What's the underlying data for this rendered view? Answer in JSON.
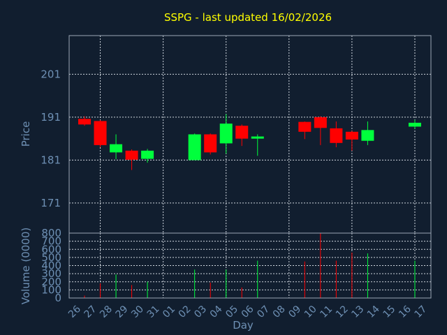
{
  "chart_data": {
    "type": "candlestick",
    "title": "SSPG - last updated 16/02/2026",
    "xlabel": "Day",
    "colors": {
      "up": "#00ff3c",
      "down": "#ff0000",
      "title": "#ffff00",
      "axis_text": "#6e90b4",
      "background": "#111e2f"
    },
    "x": [
      "26",
      "27",
      "28",
      "29",
      "30",
      "31",
      "01",
      "02",
      "03",
      "04",
      "05",
      "06",
      "07",
      "08",
      "09",
      "10",
      "11",
      "12",
      "13",
      "14",
      "15",
      "16",
      "17"
    ],
    "price": {
      "ylabel": "Price",
      "ylim": [
        164,
        210
      ],
      "yticks": [
        171,
        181,
        191,
        201
      ],
      "candles": [
        {
          "x": "26",
          "open": 190.6,
          "close": 189.3,
          "high": 191.2,
          "low": 189.0
        },
        {
          "x": "27",
          "open": 190.1,
          "close": 184.5,
          "high": 190.3,
          "low": 184.0
        },
        {
          "x": "28",
          "open": 182.8,
          "close": 184.7,
          "high": 187.0,
          "low": 181.2
        },
        {
          "x": "29",
          "open": 183.2,
          "close": 181.1,
          "high": 183.5,
          "low": 178.7
        },
        {
          "x": "30",
          "open": 181.3,
          "close": 183.2,
          "high": 183.6,
          "low": 180.4
        },
        {
          "x": "02",
          "open": 181.0,
          "close": 187.0,
          "high": 187.2,
          "low": 181.0
        },
        {
          "x": "03",
          "open": 187.0,
          "close": 182.8,
          "high": 187.2,
          "low": 182.3
        },
        {
          "x": "04",
          "open": 184.9,
          "close": 189.5,
          "high": 191.7,
          "low": 182.5
        },
        {
          "x": "05",
          "open": 189.0,
          "close": 186.0,
          "high": 189.3,
          "low": 184.3
        },
        {
          "x": "06",
          "open": 186.0,
          "close": 186.5,
          "high": 187.0,
          "low": 182.0
        },
        {
          "x": "09",
          "open": 189.9,
          "close": 187.6,
          "high": 190.0,
          "low": 185.9
        },
        {
          "x": "10",
          "open": 191.0,
          "close": 188.5,
          "high": 191.2,
          "low": 184.5
        },
        {
          "x": "11",
          "open": 188.4,
          "close": 185.0,
          "high": 190.0,
          "low": 184.0
        },
        {
          "x": "12",
          "open": 187.6,
          "close": 185.8,
          "high": 187.8,
          "low": 183.2
        },
        {
          "x": "13",
          "open": 185.5,
          "close": 188.0,
          "high": 190.0,
          "low": 184.5
        },
        {
          "x": "16",
          "open": 188.8,
          "close": 189.7,
          "high": 190.4,
          "low": 188.3
        }
      ]
    },
    "volume": {
      "ylabel": "Volume (0000)",
      "ylim": [
        0,
        800
      ],
      "yticks": [
        0,
        100,
        200,
        300,
        400,
        500,
        600,
        700,
        800
      ],
      "bars": [
        {
          "x": "26",
          "value": 30,
          "direction": "down"
        },
        {
          "x": "27",
          "value": 180,
          "direction": "down"
        },
        {
          "x": "28",
          "value": 290,
          "direction": "up"
        },
        {
          "x": "29",
          "value": 160,
          "direction": "down"
        },
        {
          "x": "30",
          "value": 200,
          "direction": "up"
        },
        {
          "x": "02",
          "value": 350,
          "direction": "up"
        },
        {
          "x": "03",
          "value": 190,
          "direction": "down"
        },
        {
          "x": "04",
          "value": 350,
          "direction": "up"
        },
        {
          "x": "05",
          "value": 130,
          "direction": "down"
        },
        {
          "x": "06",
          "value": 460,
          "direction": "up"
        },
        {
          "x": "09",
          "value": 450,
          "direction": "down"
        },
        {
          "x": "10",
          "value": 800,
          "direction": "down"
        },
        {
          "x": "11",
          "value": 460,
          "direction": "down"
        },
        {
          "x": "12",
          "value": 560,
          "direction": "down"
        },
        {
          "x": "13",
          "value": 550,
          "direction": "up"
        },
        {
          "x": "16",
          "value": 460,
          "direction": "up"
        }
      ]
    },
    "grid": true
  }
}
